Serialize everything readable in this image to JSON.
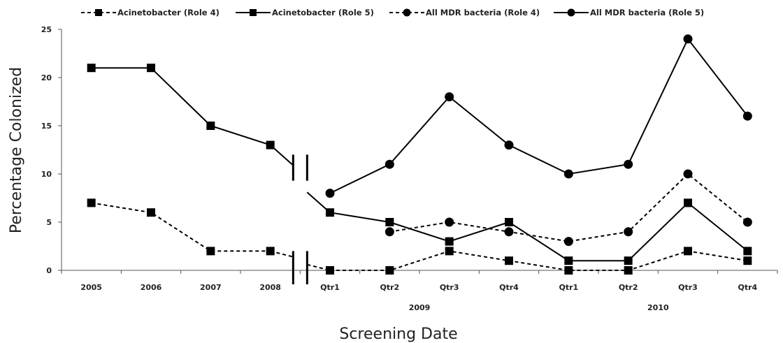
{
  "chart_data": {
    "type": "line",
    "xlabel": "Screening Date",
    "ylabel": "Percentage Colonized",
    "ylim": [
      0,
      25
    ],
    "yticks": [
      0,
      5,
      10,
      15,
      20,
      25
    ],
    "categories": [
      "2005",
      "2006",
      "2007",
      "2008",
      "Qtr1",
      "Qtr2",
      "Qtr3",
      "Qtr4",
      "Qtr1",
      "Qtr2",
      "Qtr3",
      "Qtr4"
    ],
    "year_groups": [
      {
        "label": "2009",
        "from": 4,
        "to": 7
      },
      {
        "label": "2010",
        "from": 8,
        "to": 11
      }
    ],
    "axis_break": "between 2008 and Qtr1",
    "legend_position": "top",
    "series": [
      {
        "name": "Acinetobacter (Role 4)",
        "marker": "square",
        "line": "dashed",
        "values": [
          7,
          6,
          2,
          2,
          0,
          0,
          2,
          1,
          0,
          0,
          2,
          1
        ]
      },
      {
        "name": "Acinetobacter (Role 5)",
        "marker": "square",
        "line": "solid",
        "values": [
          21,
          21,
          15,
          13,
          6,
          5,
          3,
          5,
          1,
          1,
          7,
          2
        ]
      },
      {
        "name": "All MDR bacteria (Role 4)",
        "marker": "circle",
        "line": "dashed",
        "values": [
          null,
          null,
          null,
          null,
          null,
          4,
          5,
          4,
          3,
          4,
          10,
          5
        ]
      },
      {
        "name": "All MDR bacteria (Role 5)",
        "marker": "circle",
        "line": "solid",
        "values": [
          null,
          null,
          null,
          null,
          8,
          11,
          18,
          13,
          10,
          11,
          24,
          16
        ]
      }
    ]
  }
}
